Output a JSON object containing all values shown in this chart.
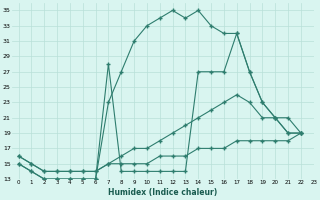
{
  "xlabel": "Humidex (Indice chaleur)",
  "bg_color": "#d9f5f0",
  "line_color": "#2e7d6e",
  "grid_color": "#b8e0d8",
  "xlim": [
    -0.5,
    23
  ],
  "ylim": [
    13,
    36
  ],
  "yticks": [
    13,
    15,
    17,
    19,
    21,
    23,
    25,
    27,
    29,
    31,
    33,
    35
  ],
  "xticks": [
    0,
    1,
    2,
    3,
    4,
    5,
    6,
    7,
    8,
    9,
    10,
    11,
    12,
    13,
    14,
    15,
    16,
    17,
    18,
    19,
    20,
    21,
    22,
    23
  ],
  "series": [
    {
      "x": [
        0,
        1,
        2,
        3,
        4,
        5,
        6,
        7,
        8,
        9,
        10,
        11,
        12,
        13,
        14,
        15,
        16,
        17,
        18,
        19,
        20,
        21,
        22
      ],
      "y": [
        15,
        14,
        13,
        13,
        13,
        13,
        13,
        23,
        27,
        31,
        33,
        34,
        35,
        34,
        35,
        33,
        32,
        32,
        27,
        23,
        21,
        19,
        19
      ]
    },
    {
      "x": [
        0,
        1,
        2,
        3,
        4,
        5,
        6,
        7,
        8,
        9,
        10,
        11,
        12,
        13,
        14,
        15,
        16,
        17,
        18,
        19,
        20,
        21,
        22
      ],
      "y": [
        15,
        14,
        13,
        13,
        13,
        13,
        13,
        28,
        14,
        14,
        14,
        14,
        14,
        14,
        27,
        27,
        27,
        32,
        27,
        23,
        21,
        19,
        19
      ]
    },
    {
      "x": [
        0,
        1,
        2,
        3,
        4,
        5,
        6,
        7,
        8,
        9,
        10,
        11,
        12,
        13,
        14,
        15,
        16,
        17,
        18,
        19,
        20,
        21,
        22
      ],
      "y": [
        16,
        15,
        14,
        14,
        14,
        14,
        14,
        15,
        16,
        17,
        17,
        18,
        19,
        20,
        21,
        22,
        23,
        24,
        23,
        21,
        21,
        21,
        19
      ]
    },
    {
      "x": [
        0,
        1,
        2,
        3,
        4,
        5,
        6,
        7,
        8,
        9,
        10,
        11,
        12,
        13,
        14,
        15,
        16,
        17,
        18,
        19,
        20,
        21,
        22
      ],
      "y": [
        16,
        15,
        14,
        14,
        14,
        14,
        14,
        15,
        15,
        15,
        15,
        16,
        16,
        16,
        17,
        17,
        17,
        18,
        18,
        18,
        18,
        18,
        19
      ]
    }
  ]
}
